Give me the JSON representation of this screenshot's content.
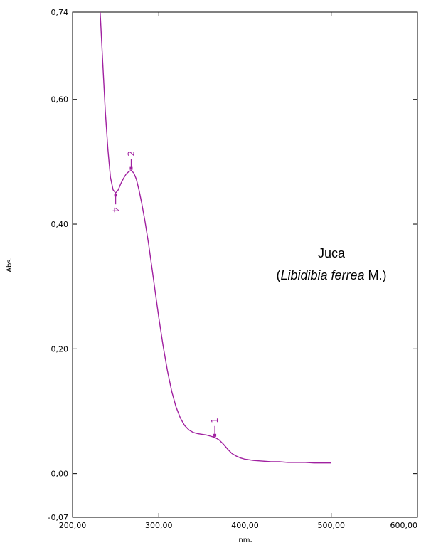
{
  "chart_data": {
    "type": "line",
    "xlabel": "nm.",
    "ylabel": "Abs.",
    "xlim": [
      200,
      600
    ],
    "ylim": [
      -0.07,
      0.74
    ],
    "x_ticks": [
      "200,00",
      "300,00",
      "400,00",
      "500,00",
      "600,00"
    ],
    "y_ticks": [
      "0,74",
      "0,60",
      "0,40",
      "0,20",
      "0,00",
      "-0,07"
    ],
    "y_tick_values": [
      0.74,
      0.6,
      0.4,
      0.2,
      0.0,
      -0.07
    ],
    "x_tick_values": [
      200,
      300,
      400,
      500,
      600
    ],
    "grid": false,
    "series": [
      {
        "color": "#a020a0",
        "x": [
          232,
          235,
          238,
          241,
          244,
          247,
          250,
          253,
          256,
          259,
          262,
          265,
          268,
          271,
          274,
          277,
          280,
          284,
          288,
          292,
          296,
          300,
          305,
          310,
          315,
          320,
          325,
          330,
          335,
          340,
          345,
          350,
          355,
          360,
          365,
          370,
          375,
          380,
          385,
          390,
          395,
          400,
          410,
          420,
          430,
          440,
          450,
          460,
          470,
          480,
          490,
          500
        ],
        "y": [
          0.74,
          0.66,
          0.58,
          0.52,
          0.475,
          0.455,
          0.45,
          0.455,
          0.465,
          0.473,
          0.48,
          0.484,
          0.486,
          0.482,
          0.472,
          0.455,
          0.435,
          0.405,
          0.37,
          0.33,
          0.29,
          0.25,
          0.205,
          0.165,
          0.132,
          0.107,
          0.089,
          0.077,
          0.07,
          0.066,
          0.064,
          0.063,
          0.062,
          0.06,
          0.058,
          0.054,
          0.047,
          0.039,
          0.032,
          0.028,
          0.025,
          0.023,
          0.021,
          0.02,
          0.019,
          0.019,
          0.018,
          0.018,
          0.018,
          0.017,
          0.017,
          0.017
        ]
      }
    ],
    "peaks": [
      {
        "label": "2",
        "x": 268,
        "y": 0.486,
        "label_side": "above"
      },
      {
        "label": "4",
        "x": 250,
        "y": 0.45,
        "label_side": "below"
      },
      {
        "label": "1",
        "x": 365,
        "y": 0.058,
        "label_side": "above"
      }
    ],
    "annotation": {
      "line1": "Juca",
      "line2_prefix": "(",
      "line2_italic": "Libidibia ferrea",
      "line2_suffix": " M.)"
    }
  }
}
